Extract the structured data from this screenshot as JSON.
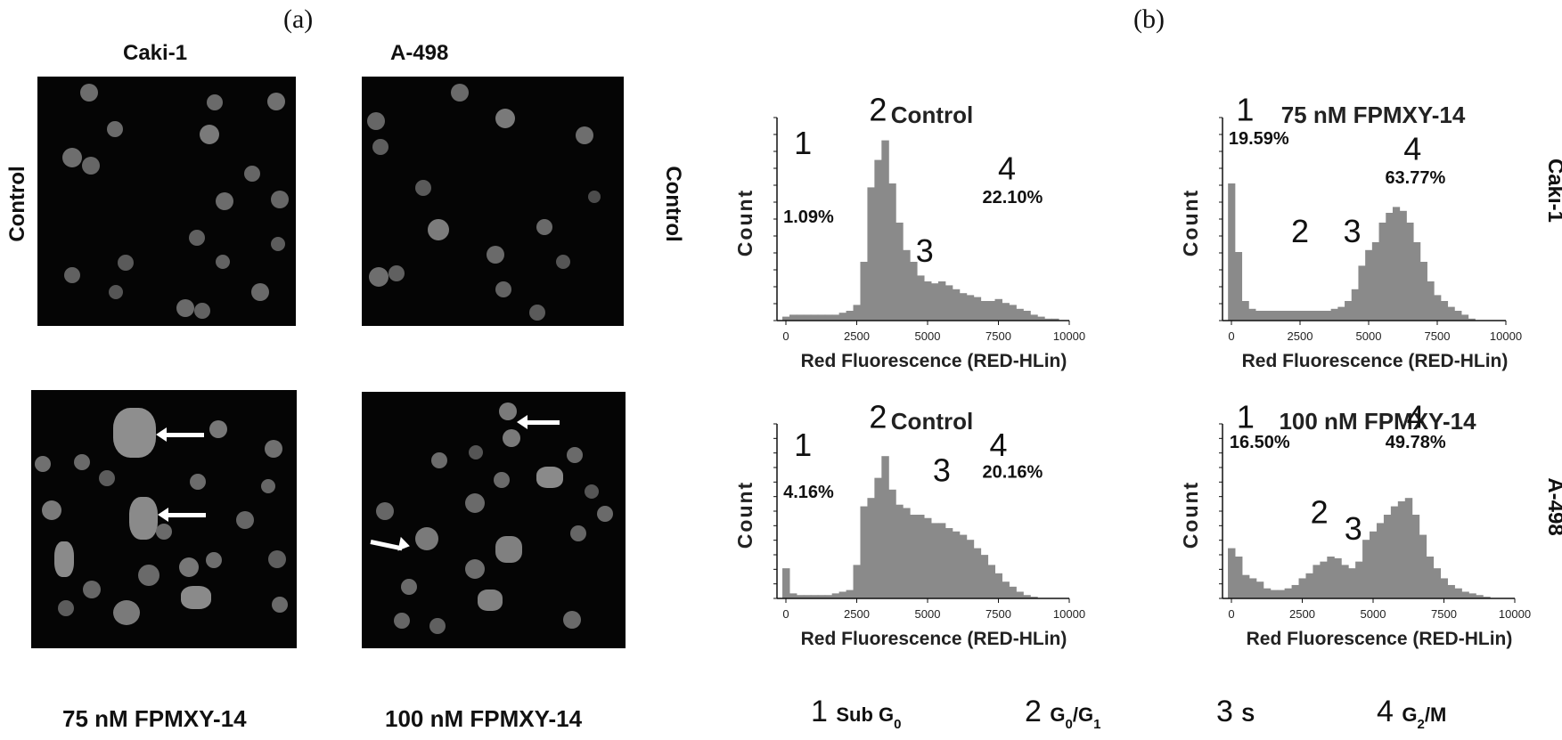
{
  "panel_a": {
    "letter": "(a)",
    "columns": [
      "Caki-1",
      "A-498"
    ],
    "row_label_left": "Control",
    "row_label_right": "Control",
    "bottom_labels": [
      "75 nM FPMXY-14",
      "100 nM FPMXY-14"
    ]
  },
  "panel_b": {
    "letter": "(b)",
    "row_labels": [
      "Caki-1",
      "A-498"
    ],
    "legend": [
      {
        "num": "1",
        "label": "Sub G",
        "sub": "0",
        "tail": ""
      },
      {
        "num": "2",
        "label": "G",
        "sub": "0",
        "tail": "/G",
        "sub2": "1"
      },
      {
        "num": "3",
        "label": "S",
        "sub": "",
        "tail": ""
      },
      {
        "num": "4",
        "label": "G",
        "sub": "2",
        "tail": "/M"
      }
    ]
  },
  "chart_data": [
    {
      "type": "area",
      "title": "Control",
      "xlabel": "Red Fluorescence (RED-HLin)",
      "ylabel": "Count",
      "xlim": [
        0,
        10000
      ],
      "xticks": [
        "0",
        "2500",
        "5000",
        "7500",
        "10000"
      ],
      "x": [
        0,
        250,
        500,
        750,
        1000,
        1250,
        1500,
        1750,
        2000,
        2250,
        2500,
        2750,
        3000,
        3250,
        3500,
        3750,
        4000,
        4250,
        4500,
        4750,
        5000,
        5250,
        5500,
        5750,
        6000,
        6250,
        6500,
        6750,
        7000,
        7250,
        7500,
        7750,
        8000,
        8250,
        8500,
        8750,
        9000,
        9250,
        9500,
        9750,
        10000
      ],
      "values": [
        0.02,
        0.03,
        0.03,
        0.03,
        0.03,
        0.03,
        0.03,
        0.03,
        0.04,
        0.05,
        0.08,
        0.3,
        0.68,
        0.82,
        0.92,
        0.7,
        0.5,
        0.36,
        0.3,
        0.23,
        0.2,
        0.19,
        0.2,
        0.18,
        0.16,
        0.14,
        0.13,
        0.12,
        0.1,
        0.1,
        0.11,
        0.09,
        0.08,
        0.06,
        0.05,
        0.03,
        0.02,
        0.01,
        0.01,
        0.0,
        0.0
      ],
      "annotations": [
        {
          "text": "1",
          "kind": "num",
          "x": 600,
          "y": 0.85
        },
        {
          "text": "1.09%",
          "kind": "pct",
          "x": 800,
          "y": 0.5
        },
        {
          "text": "2",
          "kind": "num",
          "x": 3250,
          "y": 1.02
        },
        {
          "text": "3",
          "kind": "num",
          "x": 4900,
          "y": 0.3
        },
        {
          "text": "4",
          "kind": "num",
          "x": 7800,
          "y": 0.72
        },
        {
          "text": "22.10%",
          "kind": "pct",
          "x": 8000,
          "y": 0.6
        }
      ]
    },
    {
      "type": "area",
      "title": "75 nM FPMXY-14",
      "xlabel": "Red Fluorescence (RED-HLin)",
      "ylabel": "Count",
      "xlim": [
        0,
        10000
      ],
      "xticks": [
        "0",
        "2500",
        "5000",
        "7500",
        "10000"
      ],
      "x": [
        0,
        250,
        500,
        750,
        1000,
        1250,
        1500,
        1750,
        2000,
        2250,
        2500,
        2750,
        3000,
        3250,
        3500,
        3750,
        4000,
        4250,
        4500,
        4750,
        5000,
        5250,
        5500,
        5750,
        6000,
        6250,
        6500,
        6750,
        7000,
        7250,
        7500,
        7750,
        8000,
        8250,
        8500,
        8750,
        9000,
        9250,
        9500,
        9750,
        10000
      ],
      "values": [
        0.7,
        0.35,
        0.1,
        0.06,
        0.05,
        0.05,
        0.05,
        0.05,
        0.05,
        0.05,
        0.05,
        0.05,
        0.05,
        0.05,
        0.05,
        0.06,
        0.07,
        0.1,
        0.16,
        0.28,
        0.36,
        0.4,
        0.5,
        0.55,
        0.58,
        0.56,
        0.5,
        0.4,
        0.3,
        0.2,
        0.13,
        0.1,
        0.07,
        0.05,
        0.03,
        0.01,
        0.0,
        0.0,
        0.0,
        0.0,
        0.0
      ],
      "annotations": [
        {
          "text": "1",
          "kind": "num",
          "x": 500,
          "y": 1.02
        },
        {
          "text": "19.59%",
          "kind": "pct",
          "x": 1000,
          "y": 0.9
        },
        {
          "text": "2",
          "kind": "num",
          "x": 2500,
          "y": 0.4
        },
        {
          "text": "3",
          "kind": "num",
          "x": 4400,
          "y": 0.4
        },
        {
          "text": "4",
          "kind": "num",
          "x": 6600,
          "y": 0.82
        },
        {
          "text": "63.77%",
          "kind": "pct",
          "x": 6700,
          "y": 0.7
        }
      ]
    },
    {
      "type": "area",
      "title": "Control",
      "xlabel": "Red Fluorescence (RED-HLin)",
      "ylabel": "Count",
      "xlim": [
        0,
        10000
      ],
      "xticks": [
        "0",
        "2500",
        "5000",
        "7500",
        "10000"
      ],
      "x": [
        0,
        250,
        500,
        750,
        1000,
        1250,
        1500,
        1750,
        2000,
        2250,
        2500,
        2750,
        3000,
        3250,
        3500,
        3750,
        4000,
        4250,
        4500,
        4750,
        5000,
        5250,
        5500,
        5750,
        6000,
        6250,
        6500,
        6750,
        7000,
        7250,
        7500,
        7750,
        8000,
        8250,
        8500,
        8750,
        9000,
        9250,
        9500,
        9750,
        10000
      ],
      "values": [
        0.18,
        0.03,
        0.02,
        0.02,
        0.02,
        0.02,
        0.02,
        0.03,
        0.04,
        0.05,
        0.2,
        0.55,
        0.6,
        0.72,
        0.85,
        0.65,
        0.56,
        0.54,
        0.5,
        0.5,
        0.48,
        0.45,
        0.45,
        0.42,
        0.4,
        0.38,
        0.35,
        0.3,
        0.26,
        0.2,
        0.15,
        0.1,
        0.07,
        0.04,
        0.02,
        0.01,
        0.0,
        0.0,
        0.0,
        0.0,
        0.0
      ],
      "annotations": [
        {
          "text": "1",
          "kind": "num",
          "x": 600,
          "y": 0.85
        },
        {
          "text": "4.16%",
          "kind": "pct",
          "x": 800,
          "y": 0.6
        },
        {
          "text": "2",
          "kind": "num",
          "x": 3250,
          "y": 1.02
        },
        {
          "text": "3",
          "kind": "num",
          "x": 5500,
          "y": 0.7
        },
        {
          "text": "4",
          "kind": "num",
          "x": 7500,
          "y": 0.85
        },
        {
          "text": "20.16%",
          "kind": "pct",
          "x": 8000,
          "y": 0.72
        }
      ]
    },
    {
      "type": "area",
      "title": "100 nM FPMXY-14",
      "xlabel": "Red Fluorescence (RED-HLin)",
      "ylabel": "Count",
      "xlim": [
        0,
        10000
      ],
      "xticks": [
        "0",
        "2500",
        "5000",
        "7500",
        "10000"
      ],
      "x": [
        0,
        250,
        500,
        750,
        1000,
        1250,
        1500,
        1750,
        2000,
        2250,
        2500,
        2750,
        3000,
        3250,
        3500,
        3750,
        4000,
        4250,
        4500,
        4750,
        5000,
        5250,
        5500,
        5750,
        6000,
        6250,
        6500,
        6750,
        7000,
        7250,
        7500,
        7750,
        8000,
        8250,
        8500,
        8750,
        9000,
        9250,
        9500,
        9750,
        10000
      ],
      "values": [
        0.3,
        0.25,
        0.14,
        0.12,
        0.1,
        0.06,
        0.05,
        0.05,
        0.06,
        0.08,
        0.12,
        0.15,
        0.2,
        0.22,
        0.25,
        0.24,
        0.2,
        0.18,
        0.22,
        0.35,
        0.4,
        0.45,
        0.5,
        0.55,
        0.58,
        0.6,
        0.5,
        0.38,
        0.25,
        0.18,
        0.12,
        0.08,
        0.06,
        0.04,
        0.03,
        0.02,
        0.01,
        0.0,
        0.0,
        0.0,
        0.0
      ],
      "annotations": [
        {
          "text": "1",
          "kind": "num",
          "x": 500,
          "y": 1.02
        },
        {
          "text": "16.50%",
          "kind": "pct",
          "x": 1000,
          "y": 0.9
        },
        {
          "text": "2",
          "kind": "num",
          "x": 3100,
          "y": 0.45
        },
        {
          "text": "3",
          "kind": "num",
          "x": 4300,
          "y": 0.35
        },
        {
          "text": "4",
          "kind": "num",
          "x": 6500,
          "y": 1.02
        },
        {
          "text": "49.78%",
          "kind": "pct",
          "x": 6500,
          "y": 0.9
        }
      ]
    }
  ]
}
